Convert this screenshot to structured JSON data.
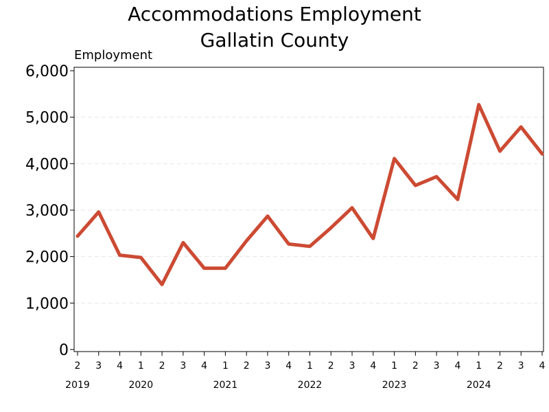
{
  "chart_data": {
    "type": "line",
    "title": "Accommodations Employment",
    "subtitle": "Gallatin County",
    "ylabel": "Employment",
    "xlabel": "",
    "ylim": [
      0,
      6000
    ],
    "yticks": [
      0,
      1000,
      2000,
      3000,
      4000,
      5000,
      6000
    ],
    "ytick_labels": [
      "0",
      "1,000",
      "2,000",
      "3,000",
      "4,000",
      "5,000",
      "6,000"
    ],
    "grid": true,
    "color": "#cc4a33",
    "quarters": [
      "2",
      "3",
      "4",
      "1",
      "2",
      "3",
      "4",
      "1",
      "2",
      "3",
      "4",
      "1",
      "2",
      "3",
      "4",
      "1",
      "2",
      "3",
      "4",
      "1",
      "2",
      "3",
      "4"
    ],
    "years": [
      {
        "label": "2019",
        "index": 0
      },
      {
        "label": "2020",
        "index": 3
      },
      {
        "label": "2021",
        "index": 7
      },
      {
        "label": "2022",
        "index": 11
      },
      {
        "label": "2023",
        "index": 15
      },
      {
        "label": "2024",
        "index": 19
      }
    ],
    "series": [
      {
        "values": [
          2440,
          2960,
          2030,
          1980,
          1400,
          2300,
          1750,
          1750,
          2340,
          2870,
          2270,
          2220,
          2620,
          3050,
          2390,
          4110,
          3530,
          3720,
          3230,
          5270,
          4270,
          4790,
          4210
        ]
      }
    ]
  }
}
